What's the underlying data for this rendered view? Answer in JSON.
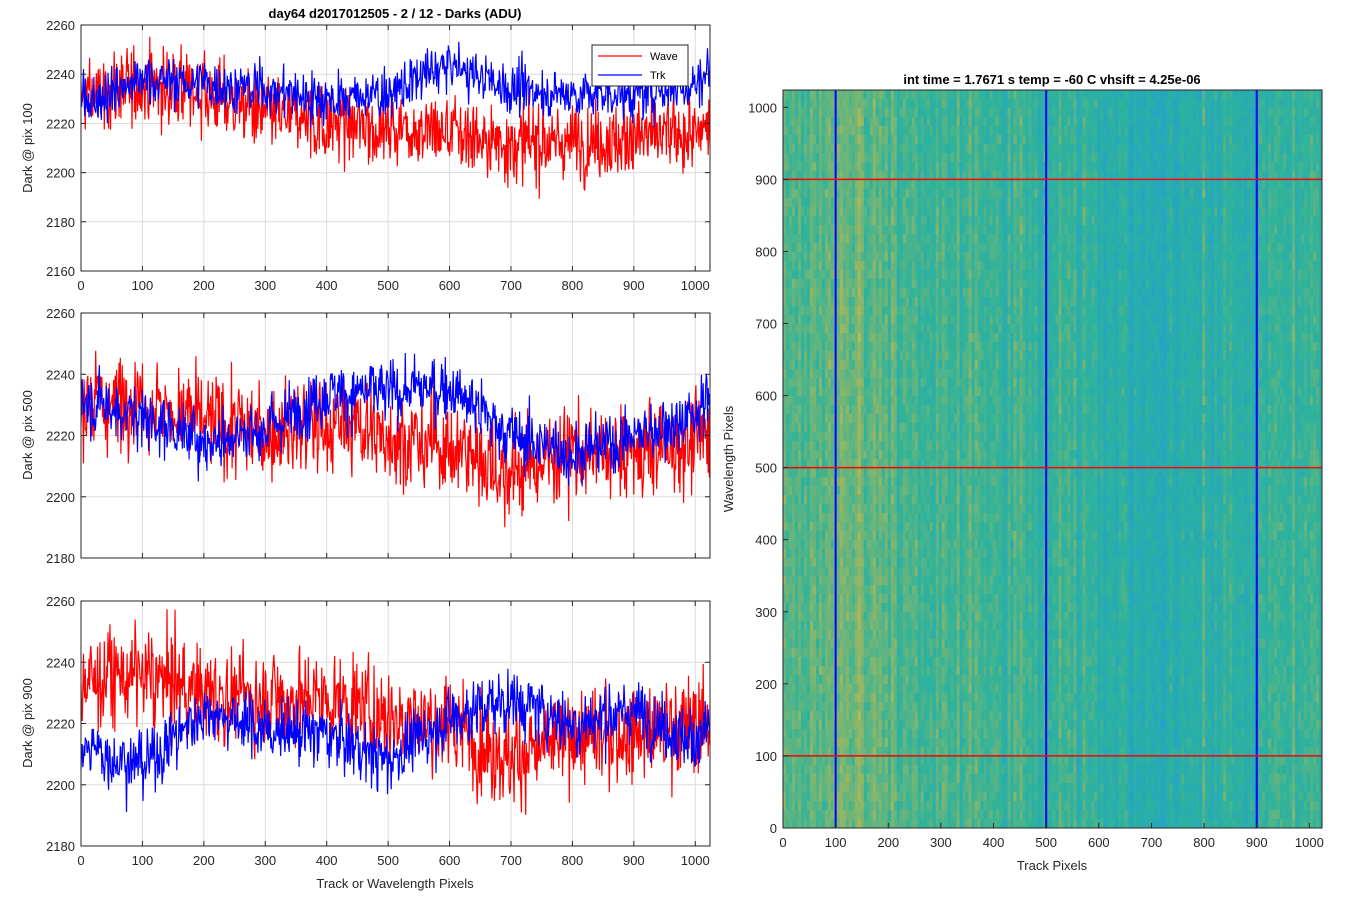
{
  "figure": {
    "title": "day64 d2017012505 - 2 / 12 - Darks (ADU)",
    "xlabel_bottom": "Track or Wavelength Pixels"
  },
  "colors": {
    "wave": "#ff0000",
    "trk": "#0000ff",
    "grid": "#dcdcdc",
    "axis": "#262626",
    "heat_low": "#1f9ed8",
    "heat_mid": "#2fb39a",
    "heat_high": "#c8b84a"
  },
  "chart_data": [
    {
      "type": "line",
      "name": "pix100",
      "title": "day64 d2017012505 - 2 / 12 - Darks (ADU)",
      "xlabel": "",
      "ylabel": "Dark @ pix 100",
      "xlim": [
        0,
        1024
      ],
      "ylim": [
        2160,
        2260
      ],
      "xticks": [
        0,
        100,
        200,
        300,
        400,
        500,
        600,
        700,
        800,
        900,
        1000
      ],
      "yticks": [
        2160,
        2180,
        2200,
        2220,
        2240,
        2260
      ],
      "grid": true,
      "legend": {
        "placement": "top-right",
        "entries": [
          "Wave",
          "Trk"
        ]
      },
      "series": [
        {
          "name": "Wave",
          "color": "#ff0000",
          "x": [
            0,
            100,
            200,
            300,
            400,
            500,
            600,
            700,
            800,
            900,
            1000,
            1024
          ],
          "values": [
            2230,
            2236,
            2232,
            2224,
            2220,
            2218,
            2216,
            2212,
            2212,
            2214,
            2216,
            2218
          ]
        },
        {
          "name": "Trk",
          "color": "#0000ff",
          "x": [
            0,
            100,
            200,
            300,
            400,
            500,
            600,
            700,
            800,
            900,
            1000,
            1024
          ],
          "values": [
            2228,
            2238,
            2236,
            2234,
            2230,
            2232,
            2244,
            2234,
            2232,
            2232,
            2236,
            2242
          ]
        }
      ]
    },
    {
      "type": "line",
      "name": "pix500",
      "title": "",
      "xlabel": "",
      "ylabel": "Dark @ pix 500",
      "xlim": [
        0,
        1024
      ],
      "ylim": [
        2180,
        2260
      ],
      "xticks": [
        0,
        100,
        200,
        300,
        400,
        500,
        600,
        700,
        800,
        900,
        1000
      ],
      "yticks": [
        2180,
        2200,
        2220,
        2240,
        2260
      ],
      "grid": true,
      "series": [
        {
          "name": "Wave",
          "color": "#ff0000",
          "x": [
            0,
            100,
            200,
            300,
            400,
            500,
            600,
            700,
            800,
            900,
            1000,
            1024
          ],
          "values": [
            2230,
            2232,
            2224,
            2222,
            2224,
            2220,
            2216,
            2208,
            2214,
            2214,
            2218,
            2220
          ]
        },
        {
          "name": "Trk",
          "color": "#0000ff",
          "x": [
            0,
            100,
            200,
            300,
            400,
            500,
            600,
            700,
            800,
            900,
            1000,
            1024
          ],
          "values": [
            2232,
            2226,
            2218,
            2222,
            2234,
            2234,
            2236,
            2220,
            2214,
            2220,
            2226,
            2232
          ]
        }
      ]
    },
    {
      "type": "line",
      "name": "pix900",
      "title": "",
      "xlabel": "Track or Wavelength Pixels",
      "ylabel": "Dark @ pix 900",
      "xlim": [
        0,
        1024
      ],
      "ylim": [
        2180,
        2260
      ],
      "xticks": [
        0,
        100,
        200,
        300,
        400,
        500,
        600,
        700,
        800,
        900,
        1000
      ],
      "yticks": [
        2180,
        2200,
        2220,
        2240,
        2260
      ],
      "grid": true,
      "series": [
        {
          "name": "Wave",
          "color": "#ff0000",
          "x": [
            0,
            100,
            200,
            300,
            400,
            500,
            600,
            700,
            800,
            900,
            1000,
            1024
          ],
          "values": [
            2234,
            2236,
            2230,
            2228,
            2228,
            2222,
            2220,
            2208,
            2216,
            2216,
            2220,
            2222
          ]
        },
        {
          "name": "Trk",
          "color": "#0000ff",
          "x": [
            0,
            100,
            200,
            300,
            400,
            500,
            600,
            700,
            800,
            900,
            1000,
            1024
          ],
          "values": [
            2212,
            2206,
            2224,
            2218,
            2216,
            2208,
            2222,
            2228,
            2220,
            2224,
            2214,
            2220
          ]
        }
      ]
    },
    {
      "type": "heatmap",
      "name": "dark-image",
      "title": "int time = 1.7671 s    temp = -60 C    vhsift = 4.25e-06",
      "xlabel": "Track Pixels",
      "ylabel": "Wavelength Pixels",
      "xlim": [
        0,
        1024
      ],
      "ylim": [
        0,
        1024
      ],
      "xticks": [
        0,
        100,
        200,
        300,
        400,
        500,
        600,
        700,
        800,
        900,
        1000
      ],
      "yticks": [
        0,
        100,
        200,
        300,
        400,
        500,
        600,
        700,
        800,
        900,
        1000
      ],
      "column_profile": {
        "x": [
          0,
          60,
          110,
          160,
          250,
          400,
          500,
          560,
          650,
          720,
          800,
          900,
          1000,
          1024
        ],
        "level": [
          0.58,
          0.62,
          0.72,
          0.62,
          0.56,
          0.52,
          0.48,
          0.46,
          0.38,
          0.36,
          0.4,
          0.44,
          0.5,
          0.52
        ]
      },
      "marker_lines": {
        "vertical": {
          "color": "#0000ff",
          "x": [
            100,
            500,
            900
          ]
        },
        "horizontal": {
          "color": "#ff0000",
          "y": [
            100,
            500,
            900
          ]
        }
      }
    }
  ]
}
